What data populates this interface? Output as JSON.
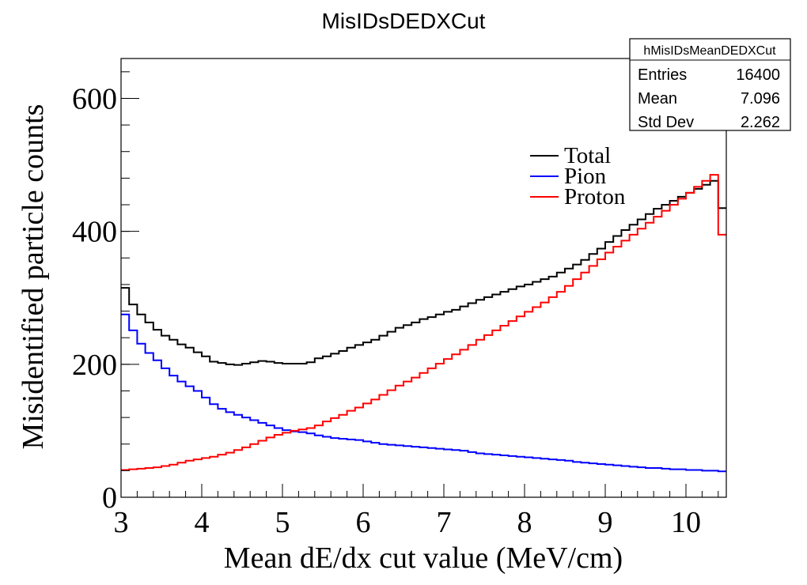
{
  "chart_data": {
    "type": "line",
    "title": "MisIDsDEDXCut",
    "xlabel": "Mean dE/dx cut value (MeV/cm)",
    "ylabel": "Misidentified particle counts",
    "xlim": [
      3,
      10.5
    ],
    "ylim": [
      0,
      660
    ],
    "x_ticks": [
      "3",
      "4",
      "5",
      "6",
      "7",
      "8",
      "9",
      "10"
    ],
    "y_ticks": [
      "0",
      "200",
      "400",
      "600"
    ],
    "bin_width": 0.1,
    "grid": false,
    "legend_position": "upper-right",
    "stats_box": {
      "name": "hMisIDsMeanDEDXCut",
      "rows": [
        {
          "label": "Entries",
          "value": "16400"
        },
        {
          "label": "Mean",
          "value": "7.096"
        },
        {
          "label": "Std Dev",
          "value": "2.262"
        }
      ]
    },
    "series": [
      {
        "name": "Total",
        "color": "#000000",
        "values": [
          315,
          290,
          275,
          263,
          252,
          243,
          237,
          230,
          225,
          218,
          212,
          204,
          202,
          200,
          199,
          201,
          203,
          205,
          204,
          202,
          201,
          201,
          201,
          203,
          209,
          212,
          216,
          220,
          225,
          229,
          233,
          237,
          243,
          249,
          255,
          259,
          263,
          268,
          271,
          275,
          279,
          282,
          287,
          292,
          297,
          301,
          305,
          309,
          313,
          317,
          320,
          324,
          328,
          332,
          338,
          344,
          350,
          357,
          366,
          374,
          384,
          393,
          402,
          410,
          418,
          426,
          434,
          440,
          446,
          452,
          458,
          464,
          470,
          476,
          435
        ]
      },
      {
        "name": "Pion",
        "color": "#0000ff",
        "values": [
          275,
          251,
          231,
          217,
          206,
          194,
          183,
          174,
          167,
          160,
          150,
          140,
          133,
          128,
          124,
          120,
          116,
          112,
          108,
          104,
          101,
          99,
          98,
          96,
          93,
          91,
          89,
          88,
          87,
          86,
          84,
          82,
          80,
          79,
          78,
          77,
          76,
          75,
          74,
          73,
          72,
          71,
          70,
          68,
          66,
          65,
          64,
          63,
          62,
          61,
          60,
          59,
          58,
          57,
          56,
          55,
          53,
          52,
          51,
          50,
          49,
          48,
          47,
          46,
          45,
          44,
          44,
          43,
          42,
          42,
          41,
          41,
          40,
          40,
          39
        ]
      },
      {
        "name": "Proton",
        "color": "#ff0000",
        "values": [
          41,
          42,
          43,
          44,
          45,
          47,
          49,
          52,
          55,
          57,
          59,
          61,
          64,
          67,
          71,
          75,
          80,
          85,
          90,
          94,
          97,
          100,
          102,
          104,
          108,
          114,
          119,
          124,
          130,
          135,
          141,
          147,
          154,
          161,
          168,
          174,
          180,
          187,
          194,
          201,
          208,
          215,
          222,
          229,
          237,
          244,
          251,
          258,
          265,
          272,
          279,
          286,
          293,
          301,
          309,
          318,
          328,
          338,
          348,
          358,
          368,
          377,
          386,
          395,
          404,
          413,
          422,
          431,
          440,
          449,
          458,
          467,
          476,
          485,
          395
        ]
      }
    ]
  }
}
